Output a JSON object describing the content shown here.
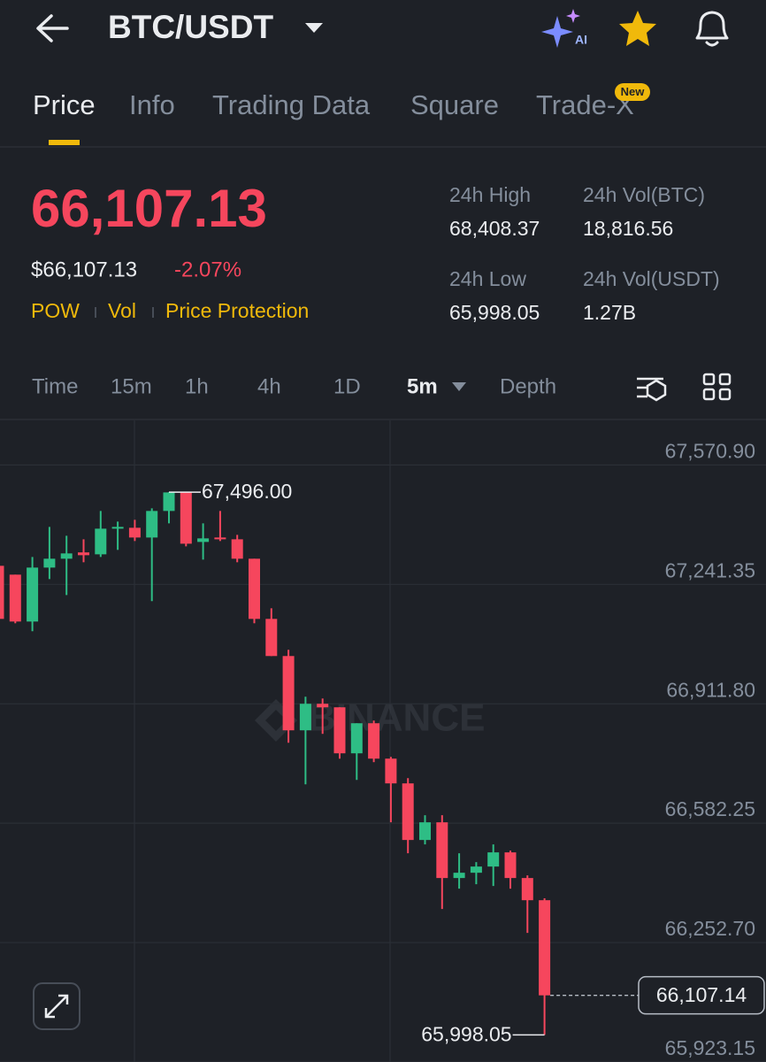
{
  "header": {
    "pair": "BTC/USDT",
    "ai_badge": "AI"
  },
  "tabs": [
    "Price",
    "Info",
    "Trading Data",
    "Square",
    "Trade-X"
  ],
  "new_badge": "New",
  "price": {
    "last": "66,107.13",
    "usd": "$66,107.13",
    "change": "-2.07%"
  },
  "tags": [
    "POW",
    "Vol",
    "Price Protection"
  ],
  "stats": [
    {
      "label": "24h High",
      "value": "68,408.37"
    },
    {
      "label": "24h Vol(BTC)",
      "value": "18,816.56"
    },
    {
      "label": "24h Low",
      "value": "65,998.05"
    },
    {
      "label": "24h Vol(USDT)",
      "value": "1.27B"
    }
  ],
  "timeframes": [
    "Time",
    "15m",
    "1h",
    "4h",
    "1D",
    "5m",
    "Depth"
  ],
  "watermark": "BINANCE",
  "chart_data": {
    "type": "candlestick",
    "up_color": "#2ebd85",
    "down_color": "#f6465d",
    "grid": true,
    "categories": [
      null,
      null,
      null,
      null,
      null,
      null,
      null,
      null,
      null,
      null,
      null,
      null,
      null,
      null,
      null,
      null,
      null,
      null,
      null,
      null,
      null,
      null,
      null,
      null,
      null,
      null,
      null,
      null,
      null,
      null,
      null,
      null,
      null
    ],
    "open": [
      67292.6,
      67268.2,
      67138.8,
      67287.7,
      67312.2,
      67329.6,
      67324.3,
      67395.1,
      67397.6,
      67370.7,
      67444.0,
      67495.2,
      67358.5,
      67370.7,
      67365.8,
      67312.2,
      67146.1,
      67043.6,
      66838.6,
      66911.8,
      66902.1,
      66775.1,
      66858.1,
      66760.4,
      66692.1,
      66535.9,
      66584.7,
      66430.9,
      66445.5,
      66462.6,
      66501.7,
      66430.9,
      66369.7
    ],
    "high": [
      67292.6,
      67268.2,
      67317.0,
      67400.0,
      67375.6,
      67365.8,
      67444.0,
      67414.7,
      67419.6,
      67451.3,
      67496.0,
      67495.2,
      67409.8,
      67444.0,
      67378.0,
      67312.2,
      67175.4,
      67060.7,
      66931.3,
      66926.4,
      66902.1,
      66858.1,
      66865.5,
      66765.3,
      66706.7,
      66604.2,
      66604.2,
      66499.2,
      66474.8,
      66523.7,
      66506.6,
      66438.2,
      66375.0
    ],
    "low": [
      67134.0,
      67134.0,
      67112.0,
      67256.0,
      67212.0,
      67302.4,
      67317.0,
      67336.6,
      67361.0,
      67195.0,
      67409.8,
      67346.3,
      67309.7,
      67361.0,
      67302.4,
      67134.0,
      67043.6,
      66804.4,
      66689.6,
      66828.8,
      66760.4,
      66701.8,
      66750.7,
      66584.7,
      66499.2,
      66523.7,
      66345.3,
      66401.6,
      66413.8,
      66408.9,
      66401.6,
      66279.4,
      65998.05
    ],
    "close": [
      67146.1,
      67138.8,
      67287.7,
      67312.2,
      67326.8,
      67321.9,
      67395.1,
      67400.0,
      67370.7,
      67444.0,
      67495.2,
      67353.6,
      67368.3,
      67365.8,
      67312.2,
      67146.1,
      67043.6,
      66838.6,
      66911.8,
      66902.1,
      66775.1,
      66858.1,
      66760.4,
      66692.1,
      66535.9,
      66584.7,
      66430.9,
      66445.5,
      66462.6,
      66501.7,
      66430.9,
      66369.7,
      66107.14
    ],
    "high_label": "67,496.00",
    "low_label": "65,998.05",
    "last_label": "66,107.14",
    "ylim": [
      65923.15,
      67694.0
    ],
    "yticks": [
      {
        "value": 65923.15,
        "label": "65,923.15"
      },
      {
        "value": 66252.7,
        "label": "66,252.70"
      },
      {
        "value": 66582.25,
        "label": "66,582.25"
      },
      {
        "value": 66911.8,
        "label": "66,911.80"
      },
      {
        "value": 67241.35,
        "label": "67,241.35"
      },
      {
        "value": 67570.9,
        "label": "67,570.90"
      }
    ]
  }
}
